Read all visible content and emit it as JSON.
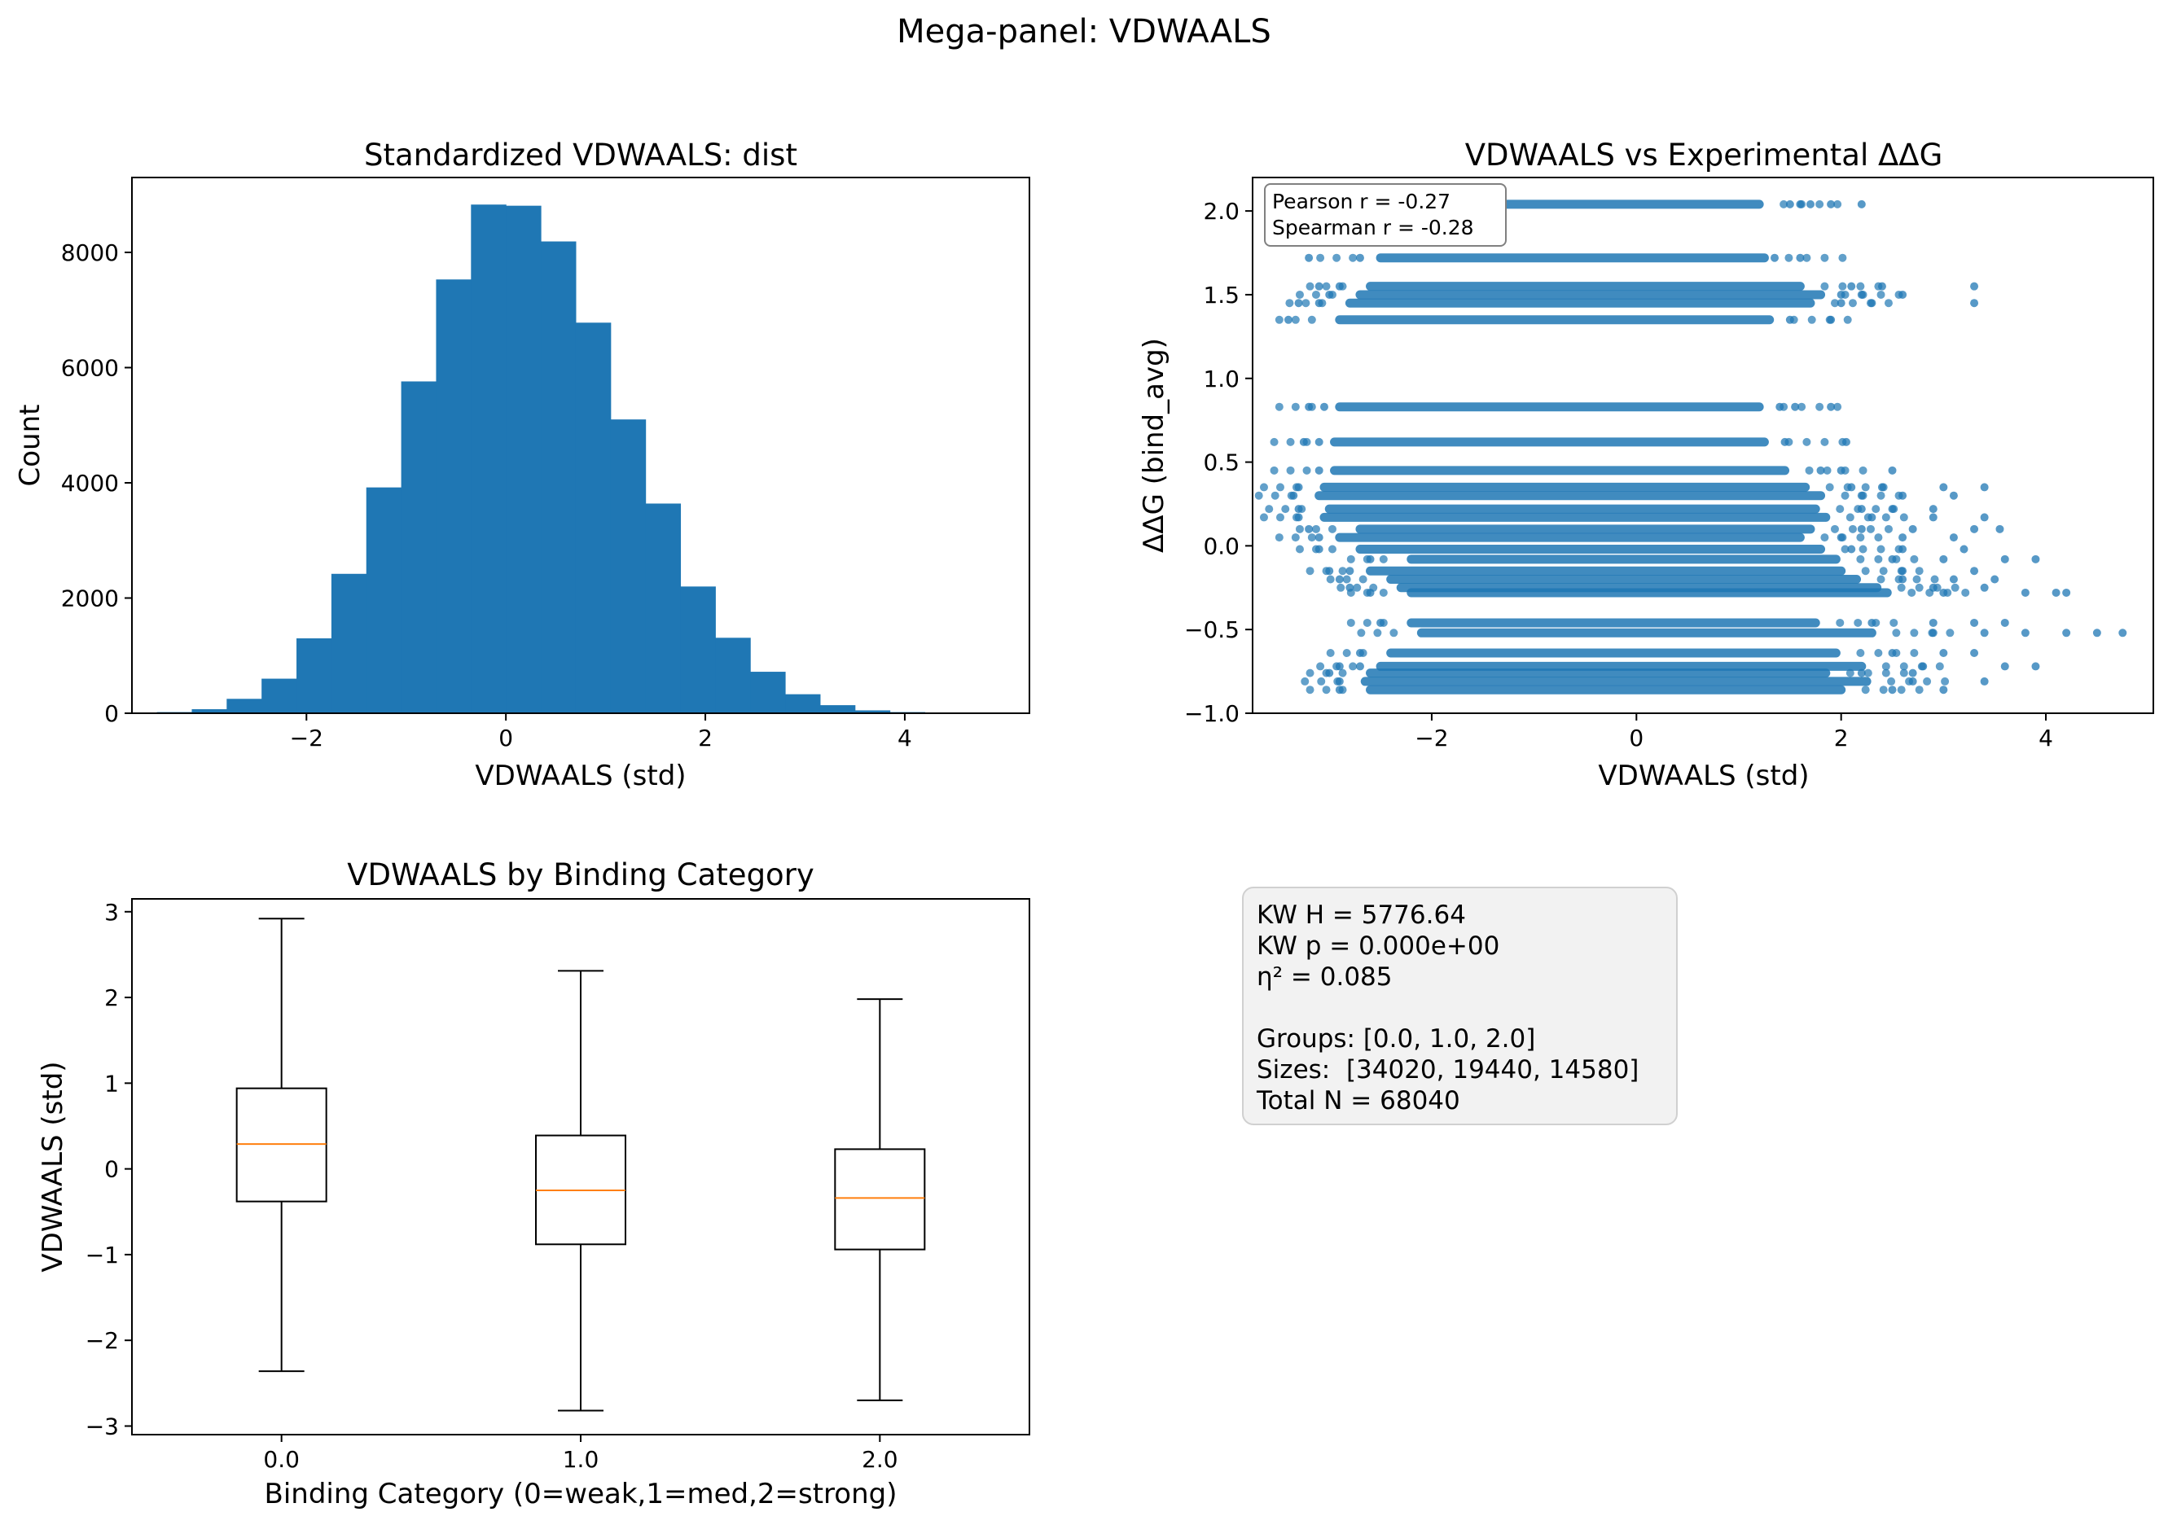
{
  "suptitle": "Mega-panel: VDWAALS",
  "chart_data": [
    {
      "type": "bar",
      "title": "Standardized VDWAALS: dist",
      "xlabel": "VDWAALS (std)",
      "ylabel": "Count",
      "xlim": [
        -3.75,
        5.25
      ],
      "ylim": [
        0,
        9300
      ],
      "xticks": [
        "−2",
        "0",
        "2",
        "4"
      ],
      "yticks": [
        "0",
        "2000",
        "4000",
        "6000",
        "8000"
      ],
      "bin_edges": [
        -3.5,
        -3.15,
        -2.8,
        -2.45,
        -2.1,
        -1.75,
        -1.4,
        -1.05,
        -0.7,
        -0.35,
        0.0,
        0.35,
        0.7,
        1.05,
        1.4,
        1.75,
        2.1,
        2.45,
        2.8,
        3.15,
        3.5,
        3.85,
        4.2,
        4.55,
        4.9
      ],
      "counts": [
        20,
        70,
        250,
        600,
        1300,
        2420,
        3920,
        5760,
        7530,
        8830,
        8810,
        8190,
        6780,
        5100,
        3640,
        2200,
        1310,
        720,
        330,
        140,
        50,
        20,
        8,
        4
      ],
      "color": "#1f77b4"
    },
    {
      "type": "scatter",
      "title": "VDWAALS vs Experimental ΔΔG",
      "xlabel": "VDWAALS (std)",
      "ylabel": "ΔΔG (bind_avg)",
      "xlim": [
        -3.75,
        5.05
      ],
      "ylim": [
        -1.0,
        2.2
      ],
      "xticks": [
        "−2",
        "0",
        "2",
        "4"
      ],
      "yticks": [
        "−1.0",
        "−0.5",
        "0.0",
        "0.5",
        "1.0",
        "1.5",
        "2.0"
      ],
      "color": "#1f77b4",
      "annotation": [
        "Pearson r = -0.27",
        "Spearman r = -0.28"
      ],
      "bands": [
        {
          "y": 2.04,
          "x_range": [
            -2.2,
            1.2
          ],
          "outliers": [
            1.5,
            1.6,
            1.7,
            1.9,
            2.2
          ]
        },
        {
          "y": 1.72,
          "x_range": [
            -2.5,
            1.25
          ],
          "outliers": [
            -3.2,
            -2.7,
            1.35,
            1.6
          ]
        },
        {
          "y": 1.55,
          "x_range": [
            -2.6,
            1.6
          ],
          "outliers": [
            -3.1,
            -2.9,
            2.1,
            2.4,
            3.3
          ]
        },
        {
          "y": 1.5,
          "x_range": [
            -2.7,
            1.8
          ],
          "outliers": [
            -3.0,
            2.0,
            2.2,
            2.6
          ]
        },
        {
          "y": 1.45,
          "x_range": [
            -2.8,
            1.7
          ],
          "outliers": [
            -3.3,
            -3.1,
            2.0,
            2.3,
            3.3
          ]
        },
        {
          "y": 1.35,
          "x_range": [
            -2.9,
            1.3
          ],
          "outliers": [
            -3.4,
            1.5,
            1.9
          ]
        },
        {
          "y": 0.83,
          "x_range": [
            -2.9,
            1.2
          ],
          "outliers": [
            -3.2,
            -3.05,
            1.4,
            1.55,
            1.9
          ]
        },
        {
          "y": 0.62,
          "x_range": [
            -2.95,
            1.25
          ],
          "outliers": [
            -3.25,
            -3.1,
            1.45,
            2.05
          ]
        },
        {
          "y": 0.45,
          "x_range": [
            -2.95,
            1.45
          ],
          "outliers": [
            -3.1,
            1.8,
            2.0,
            2.5
          ]
        },
        {
          "y": 0.35,
          "x_range": [
            -3.05,
            1.65
          ],
          "outliers": [
            -3.3,
            2.1,
            2.4,
            3.0,
            3.4
          ]
        },
        {
          "y": 0.3,
          "x_range": [
            -3.1,
            1.8
          ],
          "outliers": [
            -3.35,
            2.2,
            2.6,
            3.1
          ]
        },
        {
          "y": 0.22,
          "x_range": [
            -3.0,
            1.75
          ],
          "outliers": [
            -3.3,
            2.2,
            2.5,
            2.9
          ]
        },
        {
          "y": 0.17,
          "x_range": [
            -3.05,
            1.85
          ],
          "outliers": [
            -3.3,
            2.3,
            2.9,
            3.4
          ]
        },
        {
          "y": 0.1,
          "x_range": [
            -2.7,
            1.7
          ],
          "outliers": [
            -3.2,
            2.2,
            2.7,
            3.3,
            3.55
          ]
        },
        {
          "y": 0.05,
          "x_range": [
            -2.9,
            1.6
          ],
          "outliers": [
            -3.1,
            2.0,
            2.6,
            3.1
          ]
        },
        {
          "y": -0.02,
          "x_range": [
            -2.7,
            1.8
          ],
          "outliers": [
            -3.1,
            2.1,
            2.6,
            3.2
          ]
        },
        {
          "y": -0.08,
          "x_range": [
            -2.2,
            1.95
          ],
          "outliers": [
            -2.6,
            2.5,
            3.0,
            3.6,
            3.9
          ]
        },
        {
          "y": -0.15,
          "x_range": [
            -2.6,
            2.0
          ],
          "outliers": [
            -3.0,
            -2.8,
            2.6,
            3.3
          ]
        },
        {
          "y": -0.2,
          "x_range": [
            -2.4,
            2.15
          ],
          "outliers": [
            -2.9,
            2.6,
            3.1,
            3.5
          ]
        },
        {
          "y": -0.25,
          "x_range": [
            -2.3,
            2.35
          ],
          "outliers": [
            -2.8,
            2.9,
            3.4
          ]
        },
        {
          "y": -0.28,
          "x_range": [
            -2.2,
            2.45
          ],
          "outliers": [
            -2.6,
            3.0,
            3.8,
            4.1,
            4.2
          ]
        },
        {
          "y": -0.46,
          "x_range": [
            -2.2,
            1.75
          ],
          "outliers": [
            -2.5,
            2.3,
            2.9,
            3.3,
            3.6
          ]
        },
        {
          "y": -0.52,
          "x_range": [
            -2.1,
            2.3
          ],
          "outliers": [
            2.9,
            3.4,
            3.8,
            4.2,
            4.5,
            4.75
          ]
        },
        {
          "y": -0.64,
          "x_range": [
            -2.4,
            1.95
          ],
          "outliers": [
            -2.7,
            2.5,
            3.0,
            3.3
          ]
        },
        {
          "y": -0.72,
          "x_range": [
            -2.5,
            2.2
          ],
          "outliers": [
            -2.9,
            -2.7,
            2.8,
            3.6,
            3.9
          ]
        },
        {
          "y": -0.76,
          "x_range": [
            -2.6,
            1.85
          ],
          "outliers": [
            -3.0,
            2.2,
            2.7
          ]
        },
        {
          "y": -0.81,
          "x_range": [
            -2.65,
            2.25
          ],
          "outliers": [
            -2.9,
            2.7,
            3.4
          ]
        },
        {
          "y": -0.86,
          "x_range": [
            -2.6,
            2.0
          ],
          "outliers": [
            -2.9,
            2.5,
            3.0
          ]
        }
      ]
    },
    {
      "type": "box",
      "title": "VDWAALS by Binding Category",
      "xlabel": "Binding Category (0=weak,1=med,2=strong)",
      "ylabel": "VDWAALS (std)",
      "xlim": [
        0.5,
        3.5
      ],
      "ylim": [
        -3.1,
        3.15
      ],
      "yticks": [
        "−3",
        "−2",
        "−1",
        "0",
        "1",
        "2",
        "3"
      ],
      "categories": [
        "0.0",
        "1.0",
        "2.0"
      ],
      "boxes": [
        {
          "whisker_low": -2.36,
          "q1": -0.38,
          "median": 0.29,
          "q3": 0.94,
          "whisker_high": 2.92
        },
        {
          "whisker_low": -2.82,
          "q1": -0.88,
          "median": -0.25,
          "q3": 0.39,
          "whisker_high": 2.31
        },
        {
          "whisker_low": -2.7,
          "q1": -0.94,
          "median": -0.34,
          "q3": 0.23,
          "whisker_high": 1.98
        }
      ],
      "median_color": "#ff7f0e"
    }
  ],
  "stats_box": {
    "lines": [
      "KW H = 5776.64",
      "KW p = 0.000e+00",
      "η² = 0.085",
      "",
      "Groups: [0.0, 1.0, 2.0]",
      "Sizes:  [34020, 19440, 14580]",
      "Total N = 68040"
    ]
  }
}
